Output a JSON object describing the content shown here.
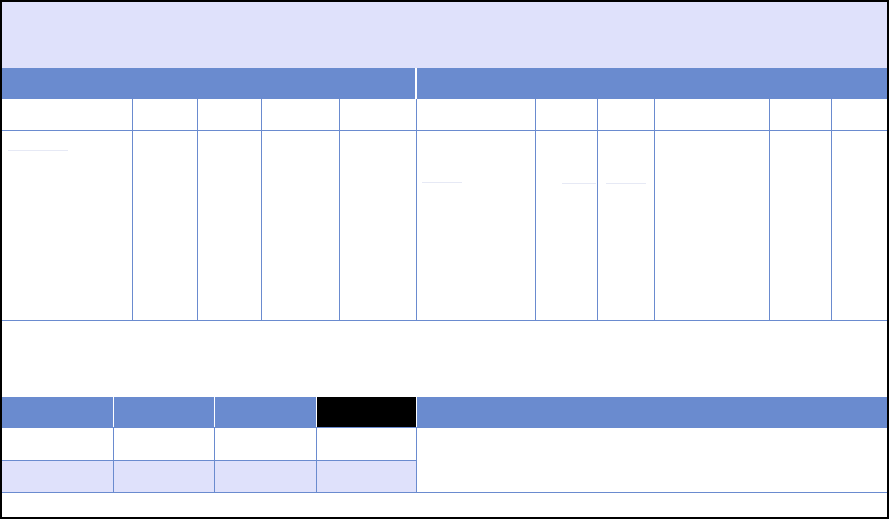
{
  "colors": {
    "header_band": "#6a8bcf",
    "title_band": "#dfe1fb",
    "rule": "#6a8bcf",
    "selected_header": "#000000",
    "border": "#000000"
  },
  "title": "",
  "sections": {
    "left_header": "",
    "right_header": ""
  },
  "top_table": {
    "columns": [
      "",
      "",
      "",
      "",
      "",
      "",
      "",
      "",
      "",
      "",
      ""
    ],
    "rows": [
      [
        "",
        "",
        "",
        "",
        "",
        "",
        "",
        "",
        "",
        "",
        ""
      ]
    ]
  },
  "bottom_table": {
    "headers": [
      "",
      "",
      "",
      "",
      ""
    ],
    "rows": [
      [
        "",
        "",
        "",
        ""
      ],
      [
        "",
        "",
        "",
        ""
      ]
    ]
  }
}
